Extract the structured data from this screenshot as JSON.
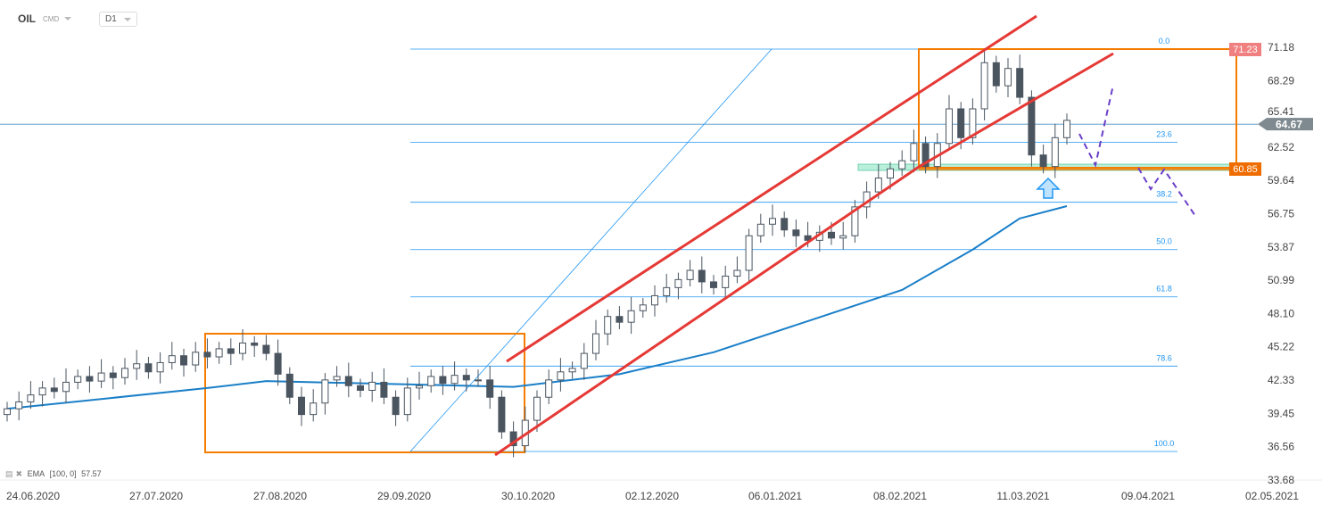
{
  "header": {
    "symbol": "OIL",
    "type": "CMD",
    "timeframe": "D1"
  },
  "indicator": {
    "name": "EMA",
    "params": "[100,  0]",
    "value": "57.57",
    "color": "#1a7fc8"
  },
  "price_tags": {
    "current": "64.67",
    "box_top": "71.23",
    "box_bottom": "60.85"
  },
  "colors": {
    "up": "#ffffff",
    "down": "#4a5560",
    "channel": "#e53935",
    "box": "#f57c00",
    "fib": "#2196f3",
    "projection": "#6a3fc8",
    "current_tag": "#7e8a90",
    "top_tag": "#f08080",
    "bottom_tag": "#ef6c00"
  },
  "chart_data": {
    "type": "candlestick",
    "y_ticks": [
      "71.18",
      "68.29",
      "65.41",
      "62.52",
      "59.64",
      "56.75",
      "53.87",
      "50.99",
      "48.10",
      "45.22",
      "42.33",
      "39.45",
      "36.56",
      "33.68"
    ],
    "ylim": [
      33.68,
      71.18
    ],
    "x_ticks": [
      "24.06.2020",
      "27.07.2020",
      "27.08.2020",
      "29.09.2020",
      "30.10.2020",
      "02.12.2020",
      "06.01.2021",
      "08.02.2021",
      "11.03.2021",
      "09.04.2021",
      "02.05.2021"
    ],
    "closes": [
      40.0,
      40.6,
      41.2,
      41.8,
      41.5,
      42.3,
      42.8,
      42.4,
      43.1,
      42.7,
      43.5,
      43.9,
      43.2,
      44.0,
      44.6,
      43.8,
      44.9,
      44.5,
      45.2,
      44.8,
      45.7,
      45.5,
      44.8,
      43.0,
      41.0,
      39.5,
      40.5,
      42.5,
      42.8,
      42.0,
      41.6,
      42.3,
      41.0,
      39.5,
      41.8,
      42.0,
      42.8,
      42.2,
      42.9,
      42.5,
      42.5,
      41.0,
      38.0,
      36.8,
      39.0,
      41.0,
      42.5,
      43.2,
      43.5,
      44.8,
      46.5,
      48.0,
      47.5,
      48.5,
      49.0,
      49.8,
      50.5,
      51.2,
      52.0,
      51.0,
      50.5,
      51.5,
      52.0,
      55.0,
      56.0,
      56.5,
      55.5,
      55.0,
      54.6,
      55.3,
      54.8,
      55.0,
      57.5,
      58.8,
      60.0,
      60.8,
      61.5,
      63.0,
      61.0,
      63.0,
      66.0,
      63.5,
      66.0,
      70.0,
      68.0,
      69.5,
      67.0,
      62.0,
      61.0,
      63.5,
      65.0
    ],
    "ema_100": [
      [
        0,
        40.0
      ],
      [
        17,
        41.8
      ],
      [
        22,
        42.4
      ],
      [
        43,
        41.9
      ],
      [
        52,
        43.0
      ],
      [
        60,
        44.9
      ],
      [
        68,
        47.6
      ],
      [
        76,
        50.3
      ],
      [
        82,
        53.8
      ],
      [
        86,
        56.5
      ],
      [
        90,
        57.57
      ]
    ],
    "fibonacci": [
      {
        "label": "0.0",
        "price": 71.18
      },
      {
        "label": "23.6",
        "price": 63.1
      },
      {
        "label": "38.2",
        "price": 57.9
      },
      {
        "label": "50.0",
        "price": 53.8
      },
      {
        "label": "61.8",
        "price": 49.7
      },
      {
        "label": "78.6",
        "price": 43.7
      },
      {
        "label": "100.0",
        "price": 36.3
      }
    ],
    "current_price": 64.67,
    "resistance": 71.23,
    "support": 60.85
  }
}
